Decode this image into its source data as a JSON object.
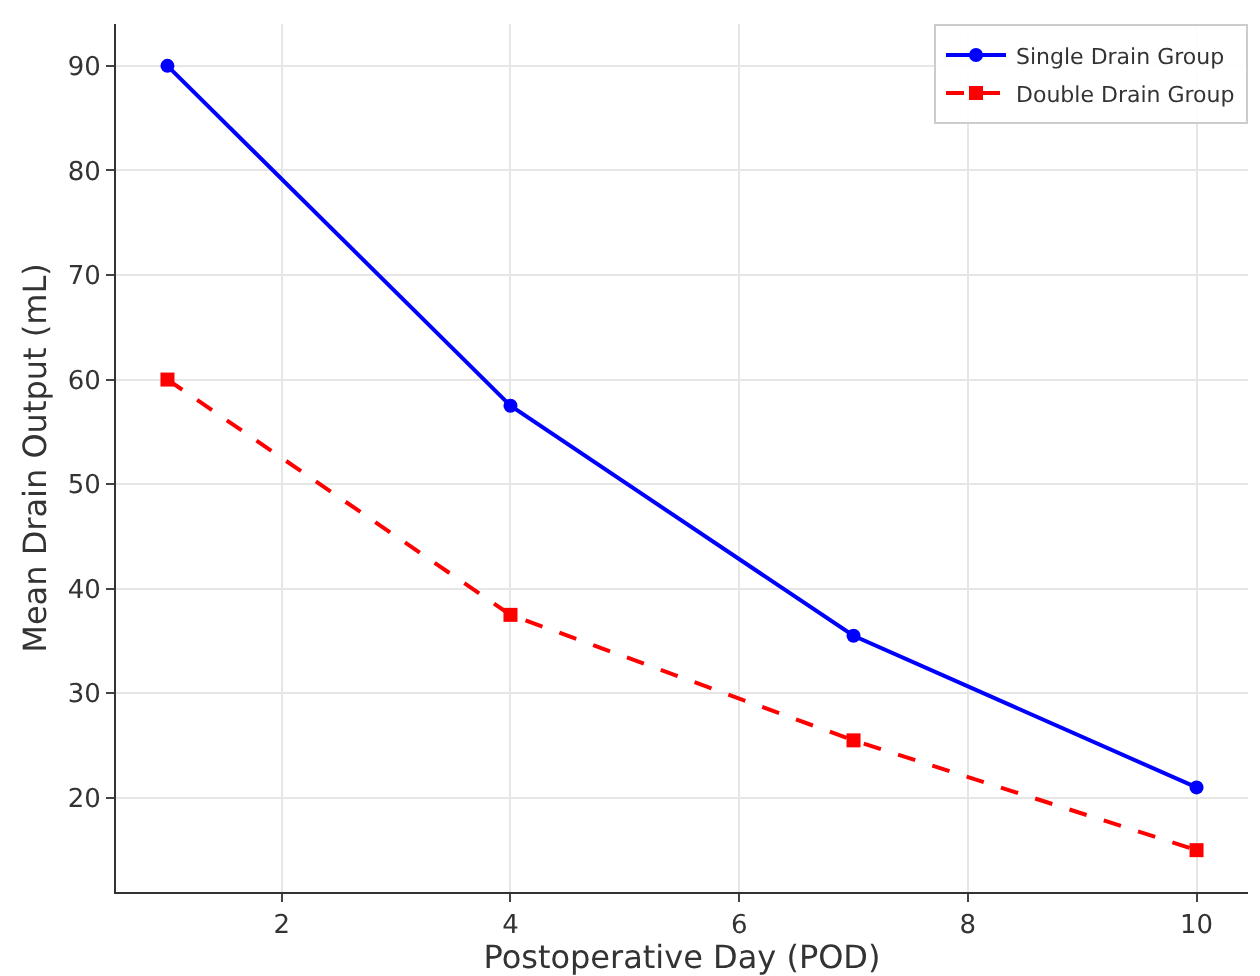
{
  "chart_data": {
    "type": "line",
    "xlabel": "Postoperative Day (POD)",
    "ylabel": "Mean Drain Output (mL)",
    "x": [
      1,
      4,
      7,
      10
    ],
    "series": [
      {
        "name": "Single Drain Group",
        "color": "#0000ff",
        "values": [
          90,
          57.5,
          35.5,
          21
        ],
        "marker": "circle",
        "line_style": "solid"
      },
      {
        "name": "Double Drain Group",
        "color": "#ff0000",
        "values": [
          60,
          37.5,
          25.5,
          15
        ],
        "marker": "square",
        "line_style": "dashed"
      }
    ],
    "xlim": [
      0.55,
      10.45
    ],
    "xticks": [
      2,
      4,
      6,
      8,
      10
    ],
    "ylim": [
      11,
      94
    ],
    "yticks": [
      20,
      30,
      40,
      50,
      60,
      70,
      80,
      90
    ],
    "grid": true,
    "legend": "top right"
  }
}
